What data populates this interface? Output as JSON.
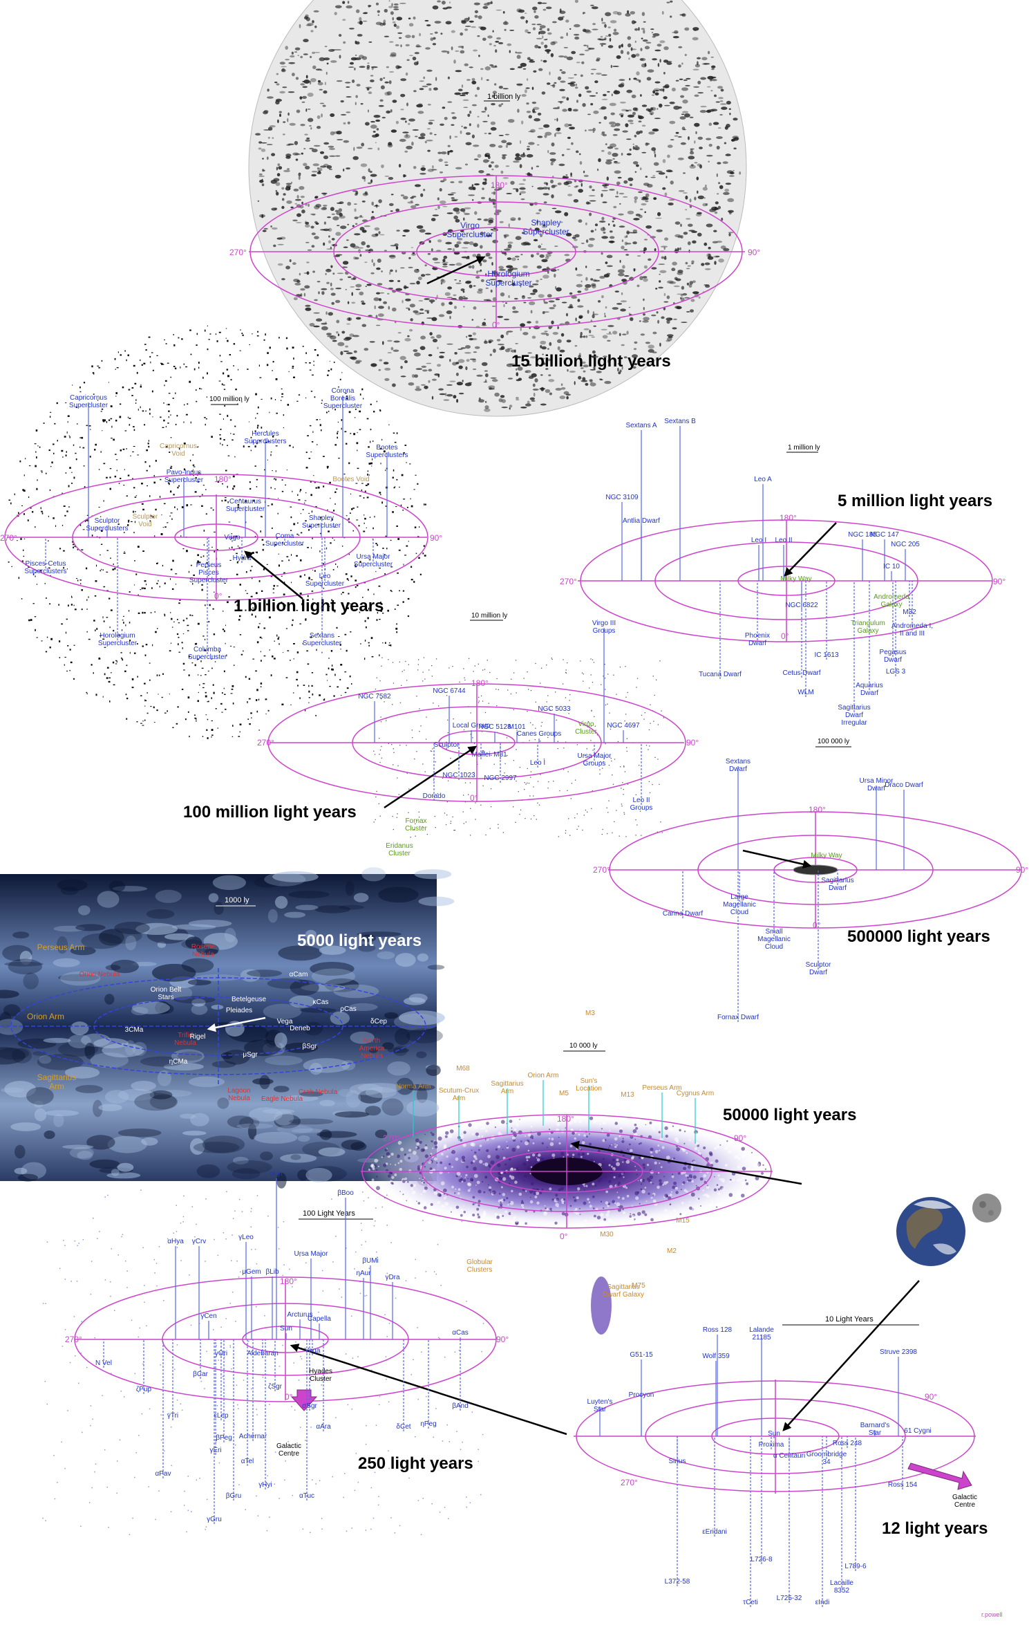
{
  "panels": {
    "universe": {
      "title": "15 billion light years",
      "scale": "1 billion ly",
      "deg_180": "180°",
      "deg_270": "270°",
      "deg_90": "90°",
      "deg_0": "0°",
      "labels": [
        "Virgo Supercluster",
        "Shapley Supercluster",
        "Horologium Supercluster"
      ]
    },
    "superclusters": {
      "title": "1 billion light years",
      "scale": "100 million ly",
      "deg_180": "180°",
      "deg_270": "270°",
      "deg_90": "90°",
      "deg_0": "0°",
      "blue_labels": [
        "Capricornus Supercluster",
        "Corona Borealis Supercluster",
        "Hercules Superclusters",
        "Bootes Superclusters",
        "Pavo-Indus Supercluster",
        "Centaurus Supercluster",
        "Sculptor Superclusters",
        "Shapley Supercluster",
        "Coma Supercluster",
        "Hydra",
        "Virgo",
        "Perseus Pisces Supercluster",
        "Ursa Major Supercluster",
        "Leo Supercluster",
        "Pisces-Cetus Superclusters",
        "Horologium Supercluster",
        "Columba Supercluster",
        "Sextans Supercluster"
      ],
      "void_labels": [
        "Capricornus Void",
        "Sculptor Void",
        "Bootes Void"
      ]
    },
    "local_group": {
      "title": "5 million light years",
      "scale": "1 million ly",
      "deg_180": "180°",
      "deg_270": "270°",
      "deg_90": "90°",
      "deg_0": "0°",
      "blue_labels": [
        "Sextans A",
        "Sextans B",
        "Leo A",
        "NGC 3109",
        "Antlia Dwarf",
        "Leo I",
        "Leo II",
        "NGC 185",
        "NGC 147",
        "NGC 205",
        "IC 10",
        "NGC 6822",
        "M32",
        "Andromeda I, II and III",
        "Phoenix Dwarf",
        "Pegasus Dwarf",
        "Tucana Dwarf",
        "IC 1613",
        "Cetus Dwarf",
        "LGS 3",
        "Aquarius Dwarf",
        "WLM",
        "Sagittarius Dwarf Irregular"
      ],
      "green_labels": [
        "Milky Way",
        "Andromeda Galaxy",
        "Triangulum Galaxy"
      ]
    },
    "virgo": {
      "title": "100 million light years",
      "scale": "10 million ly",
      "deg_180": "180°",
      "deg_270": "270°",
      "deg_90": "90°",
      "deg_0": "0°",
      "blue_labels": [
        "NGC 7582",
        "NGC 6744",
        "NGC 5033",
        "NGC 4697",
        "Virgo III Groups",
        "Local Group",
        "NGC 5128",
        "M101",
        "Canes Groups",
        "Sculptor",
        "Maffei",
        "M81",
        "Leo I",
        "Ursa Major Groups",
        "NGC 1023",
        "NGC 2997",
        "Dorado",
        "Leo II Groups"
      ],
      "green_labels": [
        "Virgo Cluster",
        "Fornax Cluster",
        "Eridanus Cluster"
      ]
    },
    "satellites": {
      "title": "500000 light years",
      "scale": "100 000 ly",
      "deg_180": "180°",
      "deg_270": "270°",
      "deg_90": "90°",
      "deg_0": "0°",
      "blue_labels": [
        "Sextans Dwarf",
        "Ursa Minor Dwarf",
        "Draco Dwarf",
        "Sagittarius Dwarf",
        "Large Magellanic Cloud",
        "Carina Dwarf",
        "Small Magellanic Cloud",
        "Sculptor Dwarf",
        "Fornax Dwarf"
      ],
      "green_labels": [
        "Milky Way"
      ]
    },
    "neighborhood": {
      "title": "5000 light years",
      "scale": "1000 ly",
      "orange_labels": [
        "Perseus Arm",
        "Orion Arm",
        "Sagittarius Arm"
      ],
      "red_labels": [
        "Rosette Nebula",
        "Orion Nebula",
        "Trifid Nebula",
        "Lagoon Nebula",
        "Eagle Nebula",
        "North America Nebula",
        "Crab Nebula"
      ],
      "white_labels": [
        "Orion Belt Stars",
        "Betelgeuse",
        "Rigel",
        "Pleiades",
        "Vega",
        "Deneb",
        "αCam",
        "κCas",
        "ρCas",
        "δCep",
        "μSgr",
        "3CMa",
        "βSgr",
        "ηCMa"
      ]
    },
    "galaxy": {
      "title": "50000 light years",
      "scale": "10 000 ly",
      "deg_180": "180°",
      "deg_270": "270°",
      "deg_90": "90°",
      "deg_0": "0°",
      "arm_labels": [
        "Norma Arm",
        "Scutum-Crux Arm",
        "Sagittarius Arm",
        "Orion Arm",
        "Sun's Location",
        "Perseus Arm",
        "Cygnus Arm"
      ],
      "cluster_labels": [
        "M3",
        "M68",
        "M5",
        "M13",
        "M30",
        "M15",
        "M2",
        "M75",
        "Globular Clusters",
        "Sagittarius Dwarf Galaxy"
      ]
    },
    "stars250": {
      "title": "250 light years",
      "scale": "100 Light Years",
      "deg_180": "180°",
      "deg_270": "270°",
      "deg_90": "90°",
      "deg_0": "0°",
      "blue_labels": [
        "αLyr",
        "βBoo",
        "αHya",
        "γCrv",
        "γLeo",
        "μGem",
        "βLib",
        "Ursa Major",
        "βUMi",
        "ηAur",
        "γDra",
        "γCen",
        "Arcturus",
        "Capella",
        "Sun",
        "Vega",
        "Aldebaran",
        "γOri",
        "αCas",
        "N Vel",
        "βCar",
        "ζSgr",
        "ζPup",
        "γTri",
        "εLep",
        "αAra",
        "σSgr",
        "δCet",
        "βAnd",
        "ηPeg",
        "βPeg",
        "γEri",
        "Achernar",
        "αTel",
        "αPav",
        "γHyi",
        "βGru",
        "αTuc",
        "γGru",
        "γPhe"
      ],
      "black_labels": [
        "Hyades Cluster",
        "Galactic Centre"
      ]
    },
    "stars12": {
      "title": "12 light years",
      "scale": "10 Light Years",
      "deg_90": "90°",
      "deg_270": "270°",
      "blue_labels": [
        "Ross 128",
        "Lalande 21185",
        "Wolf 359",
        "G51-15",
        "Struve 2398",
        "Luyten's Star",
        "Procyon",
        "Barnard's Star",
        "61 Cygni",
        "Sun",
        "Proxima",
        "α Centauri",
        "Ross 248",
        "Groombridge 34",
        "Sirius",
        "Ross 154",
        "εEridani",
        "L726-8",
        "L789-6",
        "Lacaille 8352",
        "L372-58",
        "L725-32",
        "τCeti",
        "εIndi"
      ],
      "black_labels": [
        "Galactic Centre"
      ]
    },
    "credit": "r.powell"
  }
}
